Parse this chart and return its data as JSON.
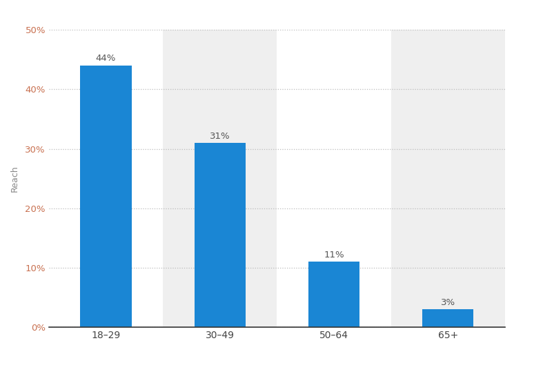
{
  "categories": [
    "18–29",
    "30–49",
    "50–64",
    "65+"
  ],
  "values": [
    44,
    31,
    11,
    3
  ],
  "bar_color": "#1a86d4",
  "ylabel": "Reach",
  "ylim": [
    0,
    50
  ],
  "yticks": [
    0,
    10,
    20,
    30,
    40,
    50
  ],
  "ytick_labels": [
    "0%",
    "10%",
    "20%",
    "30%",
    "40%",
    "50%"
  ],
  "bar_labels": [
    "44%",
    "31%",
    "11%",
    "3%"
  ],
  "bg_color": "#ffffff",
  "grid_color": "#bbbbbb",
  "label_fontsize": 10,
  "tick_fontsize": 9.5,
  "ylabel_fontsize": 9,
  "bar_width": 0.45,
  "annotation_color": "#555555",
  "annotation_fontsize": 9.5,
  "stripe_indices": [
    1,
    3
  ],
  "stripe_color": "#efefef",
  "ytick_color": "#c87050",
  "xtick_color": "#444444"
}
